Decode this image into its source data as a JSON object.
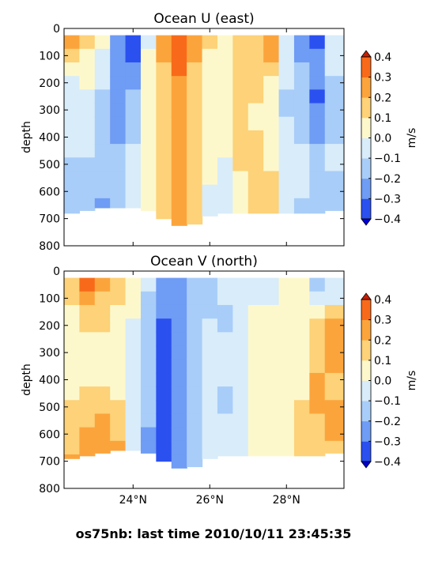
{
  "footer": {
    "caption": "os75nb: last time 2010/10/11 23:45:35"
  },
  "chart_data": [
    {
      "type": "heatmap",
      "title": "Ocean U (east)",
      "xlabel": "",
      "ylabel": "depth",
      "x_range": [
        22.2,
        29.5
      ],
      "x_tick_values": [
        24,
        26,
        28
      ],
      "x_tick_labels": [
        "24°N",
        "26°N",
        "28°N"
      ],
      "ylim": [
        800,
        0
      ],
      "y_ticks": [
        0,
        100,
        200,
        300,
        400,
        500,
        600,
        700,
        800
      ],
      "colorbar": {
        "label": "m/s",
        "levels": [
          -0.4,
          -0.3,
          -0.2,
          -0.1,
          0.0,
          0.1,
          0.2,
          0.3,
          0.4
        ],
        "tick_labels": [
          "−0.4",
          "−0.3",
          "−0.2",
          "−0.1",
          "0.0",
          "0.1",
          "0.2",
          "0.3",
          "0.4"
        ],
        "colors": [
          "#0000d8",
          "#2a50f0",
          "#6f9cf4",
          "#a8cdf8",
          "#d8ecfa",
          "#fdf8cc",
          "#fdd278",
          "#fca43c",
          "#f86a1a",
          "#c81e00"
        ]
      },
      "sections": [
        {
          "lat": 22.4,
          "bottom": 680,
          "values": [
            0.2,
            0.12,
            0.05,
            -0.05,
            -0.1,
            -0.1,
            -0.1,
            -0.1,
            -0.1,
            -0.15,
            -0.15,
            -0.2,
            -0.2,
            -0.2
          ]
        },
        {
          "lat": 22.8,
          "bottom": 670,
          "values": [
            0.1,
            0.05,
            0.05,
            0.0,
            -0.05,
            -0.05,
            -0.1,
            -0.1,
            -0.1,
            -0.15,
            -0.15,
            -0.15,
            -0.2,
            -0.2
          ]
        },
        {
          "lat": 23.2,
          "bottom": 660,
          "values": [
            0.0,
            -0.05,
            -0.1,
            -0.1,
            -0.15,
            -0.15,
            -0.15,
            -0.15,
            -0.15,
            -0.15,
            -0.15,
            -0.2,
            -0.25,
            -0.3
          ]
        },
        {
          "lat": 23.6,
          "bottom": 660,
          "values": [
            -0.25,
            -0.25,
            -0.3,
            -0.3,
            -0.3,
            -0.3,
            -0.25,
            -0.25,
            -0.2,
            -0.2,
            -0.2,
            -0.2,
            -0.2,
            -0.15
          ]
        },
        {
          "lat": 24.0,
          "bottom": 660,
          "values": [
            -0.4,
            -0.35,
            -0.3,
            -0.25,
            -0.2,
            -0.15,
            -0.15,
            -0.15,
            -0.1,
            -0.1,
            -0.1,
            -0.1,
            -0.1,
            -0.05
          ]
        },
        {
          "lat": 24.4,
          "bottom": 670,
          "values": [
            -0.05,
            0.0,
            0.0,
            0.0,
            0.0,
            0.0,
            0.05,
            0.05,
            0.05,
            0.05,
            0.05,
            0.05,
            0.05,
            0.1
          ]
        },
        {
          "lat": 24.8,
          "bottom": 700,
          "values": [
            0.25,
            0.2,
            0.15,
            0.15,
            0.15,
            0.15,
            0.15,
            0.15,
            0.1,
            0.1,
            0.1,
            0.1,
            0.1,
            0.15
          ]
        },
        {
          "lat": 25.2,
          "bottom": 730,
          "values": [
            0.35,
            0.3,
            0.3,
            0.25,
            0.25,
            0.25,
            0.25,
            0.25,
            0.25,
            0.25,
            0.25,
            0.25,
            0.25,
            0.25
          ]
        },
        {
          "lat": 25.6,
          "bottom": 720,
          "values": [
            0.25,
            0.2,
            0.15,
            0.15,
            0.15,
            0.15,
            0.1,
            0.1,
            0.1,
            0.1,
            0.1,
            0.1,
            0.1,
            0.1
          ]
        },
        {
          "lat": 26.0,
          "bottom": 690,
          "values": [
            0.1,
            0.05,
            0.05,
            0.05,
            0.05,
            0.0,
            0.0,
            0.0,
            0.0,
            0.0,
            0.0,
            -0.05,
            -0.05,
            -0.05
          ]
        },
        {
          "lat": 26.4,
          "bottom": 680,
          "values": [
            0.05,
            0.05,
            0.05,
            0.05,
            0.05,
            0.05,
            0.05,
            0.05,
            0.0,
            -0.05,
            -0.05,
            -0.05,
            -0.1,
            -0.1
          ]
        },
        {
          "lat": 26.8,
          "bottom": 680,
          "values": [
            0.1,
            0.1,
            0.1,
            0.15,
            0.15,
            0.1,
            0.1,
            0.1,
            0.1,
            0.1,
            0.05,
            0.05,
            0.05,
            0.05
          ]
        },
        {
          "lat": 27.2,
          "bottom": 680,
          "values": [
            0.15,
            0.1,
            0.1,
            0.1,
            0.1,
            0.05,
            0.05,
            0.1,
            0.1,
            0.15,
            0.15,
            0.1,
            0.1,
            0.1
          ]
        },
        {
          "lat": 27.6,
          "bottom": 680,
          "values": [
            0.25,
            0.2,
            0.1,
            0.05,
            0.05,
            0.05,
            0.05,
            0.05,
            0.05,
            0.05,
            0.1,
            0.1,
            0.1,
            0.1
          ]
        },
        {
          "lat": 28.0,
          "bottom": 680,
          "values": [
            -0.1,
            -0.1,
            -0.1,
            -0.1,
            -0.15,
            -0.15,
            -0.1,
            -0.1,
            -0.1,
            -0.1,
            -0.1,
            -0.1,
            -0.1,
            -0.1
          ]
        },
        {
          "lat": 28.4,
          "bottom": 680,
          "values": [
            -0.3,
            -0.25,
            -0.2,
            -0.2,
            -0.2,
            -0.15,
            -0.15,
            -0.15,
            -0.1,
            -0.1,
            -0.1,
            -0.1,
            -0.15,
            -0.15
          ]
        },
        {
          "lat": 28.8,
          "bottom": 680,
          "values": [
            -0.35,
            -0.3,
            -0.3,
            -0.3,
            -0.35,
            -0.3,
            -0.25,
            -0.25,
            -0.2,
            -0.2,
            -0.2,
            -0.2,
            -0.15,
            -0.15
          ]
        },
        {
          "lat": 29.2,
          "bottom": 670,
          "values": [
            -0.1,
            -0.1,
            -0.1,
            -0.15,
            -0.15,
            -0.15,
            -0.15,
            -0.15,
            -0.1,
            -0.1,
            -0.15,
            -0.15,
            -0.15,
            -0.15
          ]
        }
      ]
    },
    {
      "type": "heatmap",
      "title": "Ocean V (north)",
      "xlabel": "",
      "ylabel": "depth",
      "x_range": [
        22.2,
        29.5
      ],
      "x_tick_values": [
        24,
        26,
        28
      ],
      "x_tick_labels": [
        "24°N",
        "26°N",
        "28°N"
      ],
      "ylim": [
        800,
        0
      ],
      "y_ticks": [
        0,
        100,
        200,
        300,
        400,
        500,
        600,
        700,
        800
      ],
      "colorbar": {
        "label": "m/s",
        "levels": [
          -0.4,
          -0.3,
          -0.2,
          -0.1,
          0.0,
          0.1,
          0.2,
          0.3,
          0.4
        ],
        "tick_labels": [
          "−0.4",
          "−0.3",
          "−0.2",
          "−0.1",
          "0.0",
          "0.1",
          "0.2",
          "0.3",
          "0.4"
        ],
        "colors": [
          "#0000d8",
          "#2a50f0",
          "#6f9cf4",
          "#a8cdf8",
          "#d8ecfa",
          "#fdf8cc",
          "#fdd278",
          "#fca43c",
          "#f86a1a",
          "#c81e00"
        ]
      },
      "sections": [
        {
          "lat": 22.4,
          "bottom": 690,
          "values": [
            0.15,
            0.1,
            0.05,
            0.0,
            0.0,
            0.0,
            0.0,
            0.05,
            0.05,
            0.1,
            0.1,
            0.15,
            0.15,
            0.2
          ]
        },
        {
          "lat": 22.8,
          "bottom": 680,
          "values": [
            0.35,
            0.25,
            0.15,
            0.1,
            0.05,
            0.05,
            0.05,
            0.05,
            0.1,
            0.1,
            0.15,
            0.2,
            0.2,
            0.2
          ]
        },
        {
          "lat": 23.2,
          "bottom": 670,
          "values": [
            0.2,
            0.15,
            0.1,
            0.1,
            0.05,
            0.05,
            0.05,
            0.05,
            0.1,
            0.15,
            0.2,
            0.25,
            0.25,
            0.25
          ]
        },
        {
          "lat": 23.6,
          "bottom": 660,
          "values": [
            0.1,
            0.1,
            0.05,
            0.05,
            0.0,
            0.0,
            0.0,
            0.05,
            0.05,
            0.1,
            0.1,
            0.15,
            0.2,
            0.25
          ]
        },
        {
          "lat": 24.0,
          "bottom": 660,
          "values": [
            0.05,
            0.05,
            0.0,
            -0.05,
            -0.05,
            -0.05,
            -0.05,
            -0.05,
            -0.05,
            -0.05,
            -0.05,
            -0.05,
            -0.05,
            -0.05
          ]
        },
        {
          "lat": 24.4,
          "bottom": 670,
          "values": [
            -0.1,
            -0.15,
            -0.2,
            -0.2,
            -0.2,
            -0.2,
            -0.2,
            -0.2,
            -0.2,
            -0.2,
            -0.2,
            -0.25,
            -0.25,
            -0.25
          ]
        },
        {
          "lat": 24.8,
          "bottom": 700,
          "values": [
            -0.3,
            -0.3,
            -0.3,
            -0.35,
            -0.4,
            -0.4,
            -0.4,
            -0.4,
            -0.4,
            -0.4,
            -0.35,
            -0.35,
            -0.35,
            -0.35
          ]
        },
        {
          "lat": 25.2,
          "bottom": 730,
          "values": [
            -0.3,
            -0.3,
            -0.25,
            -0.25,
            -0.3,
            -0.3,
            -0.3,
            -0.3,
            -0.3,
            -0.3,
            -0.25,
            -0.25,
            -0.25,
            -0.25
          ]
        },
        {
          "lat": 25.6,
          "bottom": 720,
          "values": [
            -0.2,
            -0.2,
            -0.15,
            -0.15,
            -0.15,
            -0.15,
            -0.15,
            -0.15,
            -0.15,
            -0.15,
            -0.15,
            -0.15,
            -0.15,
            -0.15
          ]
        },
        {
          "lat": 26.0,
          "bottom": 690,
          "values": [
            -0.15,
            -0.15,
            -0.15,
            -0.1,
            -0.1,
            -0.1,
            -0.1,
            -0.1,
            -0.1,
            -0.1,
            -0.1,
            -0.1,
            -0.1,
            -0.1
          ]
        },
        {
          "lat": 26.4,
          "bottom": 680,
          "values": [
            -0.1,
            -0.1,
            -0.15,
            -0.15,
            -0.1,
            -0.1,
            -0.1,
            -0.1,
            -0.15,
            -0.15,
            -0.1,
            -0.1,
            -0.1,
            -0.1
          ]
        },
        {
          "lat": 26.8,
          "bottom": 680,
          "values": [
            -0.1,
            -0.1,
            -0.05,
            -0.05,
            -0.05,
            -0.05,
            -0.1,
            -0.1,
            -0.1,
            -0.05,
            -0.05,
            -0.05,
            -0.05,
            -0.05
          ]
        },
        {
          "lat": 27.2,
          "bottom": 680,
          "values": [
            -0.05,
            -0.05,
            0.0,
            0.0,
            0.0,
            0.05,
            0.05,
            0.05,
            0.05,
            0.05,
            0.05,
            0.05,
            0.05,
            0.05
          ]
        },
        {
          "lat": 27.6,
          "bottom": 680,
          "values": [
            -0.1,
            -0.05,
            0.0,
            0.0,
            0.05,
            0.05,
            0.05,
            0.05,
            0.05,
            0.05,
            0.05,
            0.05,
            0.05,
            0.05
          ]
        },
        {
          "lat": 28.0,
          "bottom": 680,
          "values": [
            0.05,
            0.05,
            0.05,
            0.05,
            0.05,
            0.05,
            0.05,
            0.05,
            0.05,
            0.05,
            0.05,
            0.05,
            0.05,
            0.05
          ]
        },
        {
          "lat": 28.4,
          "bottom": 680,
          "values": [
            0.0,
            0.0,
            0.05,
            0.05,
            0.05,
            0.05,
            0.05,
            0.05,
            0.05,
            0.1,
            0.1,
            0.1,
            0.1,
            0.1
          ]
        },
        {
          "lat": 28.8,
          "bottom": 680,
          "values": [
            -0.15,
            -0.1,
            0.05,
            0.15,
            0.15,
            0.15,
            0.15,
            0.2,
            0.2,
            0.2,
            0.15,
            0.15,
            0.15,
            0.15
          ]
        },
        {
          "lat": 29.2,
          "bottom": 670,
          "values": [
            -0.1,
            -0.05,
            0.1,
            0.2,
            0.2,
            0.2,
            0.2,
            0.15,
            0.15,
            0.2,
            0.2,
            0.2,
            0.15,
            0.15
          ]
        }
      ]
    }
  ]
}
